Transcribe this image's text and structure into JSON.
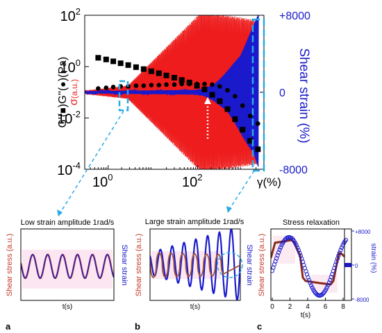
{
  "colors": {
    "red": "#ee1c1c",
    "blue": "#1a1acc",
    "cyan": "#29a9e6",
    "pink": "#f4b8d8",
    "black": "#000000",
    "brown": "#8b2a1a"
  },
  "chart_data": [
    {
      "panel": "main",
      "type": "scatter",
      "x_scale": "log",
      "xlim": [
        0.3,
        3000
      ],
      "ylim_left": [
        0.0001,
        100
      ],
      "ylim_right": [
        -8000,
        8000
      ],
      "ylabel": "G'(■)G''(●)(Pa)",
      "ylabel_parts": {
        "prefix": "G'(",
        "mid": ")G''(",
        "suffix": ")(Pa)"
      },
      "y2label": "Shear strain (%)",
      "sigma_label": "σ",
      "sigma_unit": "(a.u.)",
      "xlabel": "γ(%)",
      "yticks_left": [
        {
          "base": "10",
          "exp": "-4",
          "value": 0.0001
        },
        {
          "base": "10",
          "exp": "-2",
          "value": 0.01
        },
        {
          "base": "10",
          "exp": "0",
          "value": 1
        },
        {
          "base": "10",
          "exp": "2",
          "value": 100
        }
      ],
      "yticks_right": [
        {
          "label": "+8000",
          "value": 8000
        },
        {
          "label": "0",
          "value": 0
        },
        {
          "label": "-8000",
          "value": -8000
        }
      ],
      "xticks": [
        {
          "base": "10",
          "exp": "0",
          "value": 1
        },
        {
          "base": "10",
          "exp": "2",
          "value": 100
        }
      ],
      "series": [
        {
          "marker": "square",
          "values_x": [
            0.6,
            0.9,
            1.3,
            1.9,
            2.8,
            4.2,
            6.2,
            9.2,
            13.6,
            20,
            30,
            44,
            65,
            96,
            142,
            210,
            310,
            460,
            680,
            1000,
            1480,
            2200
          ],
          "values_y": [
            2.2,
            1.9,
            1.6,
            1.35,
            1.15,
            0.95,
            0.8,
            0.66,
            0.55,
            0.45,
            0.37,
            0.3,
            0.24,
            0.18,
            0.13,
            0.08,
            0.045,
            0.022,
            0.009,
            0.0035,
            0.0013,
            0.0006
          ]
        },
        {
          "marker": "circle",
          "values_x": [
            0.6,
            0.9,
            1.3,
            1.9,
            2.8,
            4.2,
            6.2,
            9.2,
            13.6,
            20,
            30,
            44,
            65,
            96,
            142,
            210,
            310,
            460,
            680,
            1000,
            1480,
            2200
          ],
          "values_y": [
            0.14,
            0.15,
            0.16,
            0.17,
            0.17,
            0.18,
            0.18,
            0.19,
            0.19,
            0.2,
            0.2,
            0.21,
            0.21,
            0.21,
            0.21,
            0.2,
            0.17,
            0.12,
            0.07,
            0.03,
            0.012,
            0.006
          ]
        }
      ]
    },
    {
      "panel": "a",
      "type": "line",
      "title": "Low strain amplitude 1rad/s",
      "ylabel": "Shear stress (a.u.)",
      "y2label": "Shear strain",
      "xlabel": "t(s)",
      "caption": "a"
    },
    {
      "panel": "b",
      "type": "line",
      "title": "Large strain amplitude 1rad/s",
      "ylabel": "Shear stress (a.u.)",
      "y2label": "Shear strain",
      "xlabel": "t(s)",
      "caption": "b"
    },
    {
      "panel": "c",
      "type": "scatter",
      "title": "Stress relaxation",
      "ylabel": "Shear stress (a.u.)",
      "y2label": "strain (%)",
      "xlabel": "t(s)",
      "caption": "c",
      "xlim": [
        0,
        8
      ],
      "xticks": [
        "0",
        "2",
        "4",
        "6",
        "8"
      ],
      "yticks_right": [
        "+8000",
        "0",
        "-8000"
      ]
    }
  ]
}
